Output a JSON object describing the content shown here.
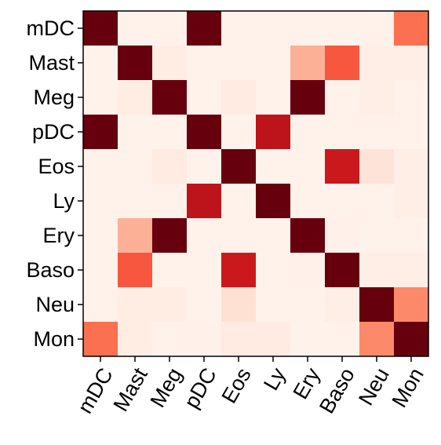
{
  "chart_data": {
    "type": "heatmap",
    "title": "",
    "xlabel": "",
    "ylabel": "",
    "grid": false,
    "colormap": "Reds",
    "value_range": [
      0,
      1
    ],
    "x_categories": [
      "mDC",
      "Mast",
      "Meg",
      "pDC",
      "Eos",
      "Ly",
      "Ery",
      "Baso",
      "Neu",
      "Mon"
    ],
    "y_categories": [
      "mDC",
      "Mast",
      "Meg",
      "pDC",
      "Eos",
      "Ly",
      "Ery",
      "Baso",
      "Neu",
      "Mon"
    ],
    "values": [
      [
        1.0,
        0.02,
        0.02,
        1.0,
        0.02,
        0.02,
        0.02,
        0.02,
        0.02,
        0.48
      ],
      [
        0.02,
        1.0,
        0.05,
        0.02,
        0.02,
        0.02,
        0.28,
        0.55,
        0.04,
        0.04
      ],
      [
        0.02,
        0.05,
        1.0,
        0.02,
        0.06,
        0.02,
        1.0,
        0.02,
        0.04,
        0.02
      ],
      [
        1.0,
        0.02,
        0.02,
        1.0,
        0.02,
        0.8,
        0.02,
        0.02,
        0.02,
        0.02
      ],
      [
        0.02,
        0.02,
        0.06,
        0.02,
        1.0,
        0.02,
        0.02,
        0.75,
        0.1,
        0.04
      ],
      [
        0.02,
        0.02,
        0.02,
        0.8,
        0.02,
        1.0,
        0.02,
        0.02,
        0.02,
        0.04
      ],
      [
        0.02,
        0.28,
        1.0,
        0.02,
        0.02,
        0.02,
        1.0,
        0.03,
        0.02,
        0.02
      ],
      [
        0.02,
        0.55,
        0.02,
        0.02,
        0.75,
        0.02,
        0.03,
        1.0,
        0.04,
        0.04
      ],
      [
        0.02,
        0.05,
        0.05,
        0.02,
        0.12,
        0.02,
        0.02,
        0.04,
        1.0,
        0.4
      ],
      [
        0.48,
        0.05,
        0.02,
        0.03,
        0.06,
        0.06,
        0.02,
        0.02,
        0.4,
        1.0
      ]
    ]
  }
}
